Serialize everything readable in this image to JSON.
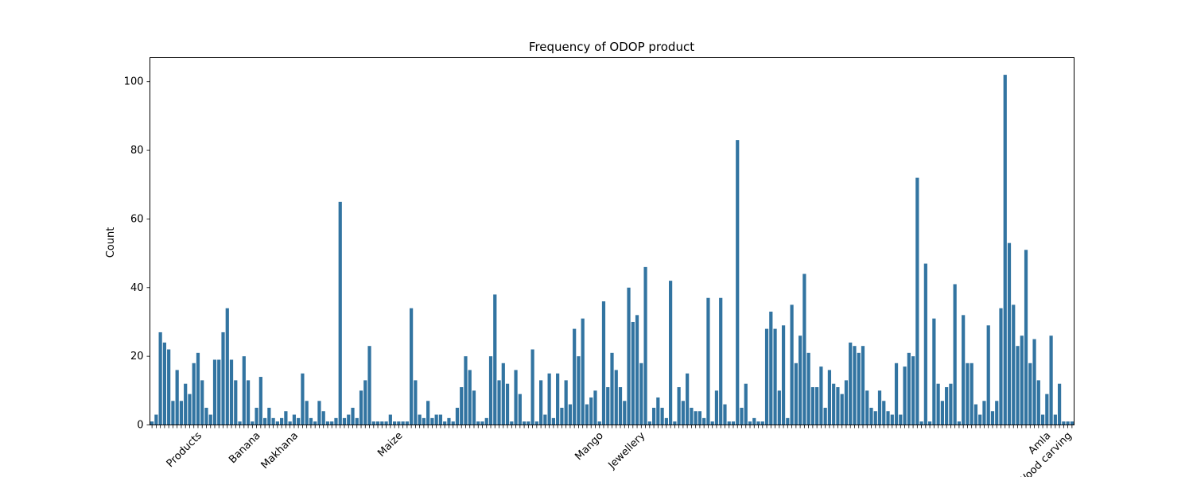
{
  "chart_data": {
    "type": "bar",
    "title": "Frequency of ODOP product",
    "xlabel": "",
    "ylabel": "Count",
    "ylim": [
      0,
      107
    ],
    "yticks": [
      0,
      20,
      40,
      60,
      80,
      100
    ],
    "grid": false,
    "legend": "none",
    "bar_color": "#3274a1",
    "visible_xtick_labels": [
      "Products",
      "Banana",
      "Makhana",
      "Maize",
      "Mango",
      "Jewellery",
      "Wood carving",
      "Amla"
    ],
    "values": [
      1,
      3,
      27,
      24,
      22,
      7,
      16,
      7,
      12,
      9,
      18,
      21,
      13,
      5,
      3,
      19,
      19,
      27,
      34,
      19,
      13,
      1,
      20,
      13,
      1,
      5,
      14,
      2,
      5,
      2,
      1,
      2,
      4,
      1,
      3,
      2,
      15,
      7,
      2,
      1,
      7,
      4,
      1,
      1,
      2,
      65,
      2,
      3,
      5,
      2,
      10,
      13,
      23,
      1,
      1,
      1,
      1,
      3,
      1,
      1,
      1,
      1,
      34,
      13,
      3,
      2,
      7,
      2,
      3,
      3,
      1,
      2,
      1,
      5,
      11,
      20,
      16,
      10,
      1,
      1,
      2,
      20,
      38,
      13,
      18,
      12,
      1,
      16,
      9,
      1,
      1,
      22,
      1,
      13,
      3,
      15,
      2,
      15,
      5,
      13,
      6,
      28,
      20,
      31,
      6,
      8,
      10,
      1,
      36,
      11,
      21,
      16,
      11,
      7,
      40,
      30,
      32,
      18,
      46,
      1,
      5,
      8,
      5,
      2,
      42,
      1,
      11,
      7,
      15,
      5,
      4,
      4,
      2,
      37,
      1,
      10,
      37,
      6,
      1,
      1,
      83,
      5,
      12,
      1,
      2,
      1,
      1,
      28,
      33,
      28,
      10,
      29,
      2,
      35,
      18,
      26,
      44,
      21,
      11,
      11,
      17,
      5,
      16,
      12,
      11,
      9,
      13,
      24,
      23,
      21,
      23,
      10,
      5,
      4,
      10,
      7,
      4,
      3,
      18,
      3,
      17,
      21,
      20,
      72,
      1,
      47,
      1,
      31,
      12,
      7,
      11,
      12,
      41,
      1,
      32,
      18,
      18,
      6,
      3,
      7,
      29,
      4,
      7,
      34,
      102,
      53,
      35,
      23,
      26,
      51,
      18,
      25,
      13,
      3,
      9,
      26,
      3,
      12,
      1,
      1,
      1
    ]
  }
}
